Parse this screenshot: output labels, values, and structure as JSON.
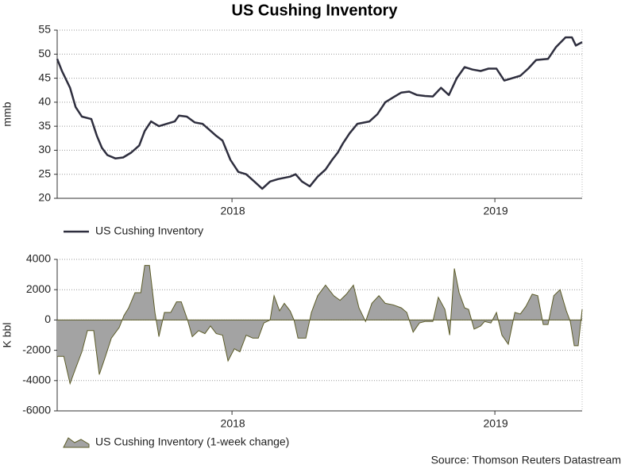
{
  "title": "US Cushing Inventory",
  "source": "Source: Thomson Reuters Datastream",
  "chart_data": [
    {
      "type": "line",
      "ylabel": "mmb",
      "x": [
        2017.335,
        2017.353,
        2017.384,
        2017.405,
        2017.429,
        2017.465,
        2017.486,
        2017.505,
        2017.526,
        2017.556,
        2017.586,
        2017.616,
        2017.647,
        2017.668,
        2017.692,
        2017.722,
        2017.752,
        2017.782,
        2017.798,
        2017.828,
        2017.858,
        2017.888,
        2017.909,
        2017.94,
        2017.964,
        2017.994,
        2018.024,
        2018.054,
        2018.085,
        2018.115,
        2018.145,
        2018.175,
        2018.221,
        2018.242,
        2018.266,
        2018.296,
        2018.326,
        2018.356,
        2018.381,
        2018.402,
        2018.423,
        2018.447,
        2018.477,
        2018.523,
        2018.553,
        2018.583,
        2018.613,
        2018.644,
        2018.674,
        2018.704,
        2018.734,
        2018.764,
        2018.795,
        2018.825,
        2018.855,
        2018.885,
        2018.915,
        2018.946,
        2018.976,
        2019.006,
        2019.036,
        2019.066,
        2019.097,
        2019.127,
        2019.157,
        2019.202,
        2019.233,
        2019.269,
        2019.293,
        2019.308,
        2019.332
      ],
      "series": [
        {
          "name": "US Cushing Inventory",
          "color": "#2e2e3e",
          "values": [
            49,
            46.5,
            43,
            39,
            37,
            36.5,
            33,
            30.5,
            29,
            28.3,
            28.5,
            29.5,
            31,
            34,
            36,
            35,
            35.5,
            36,
            37.2,
            37,
            35.8,
            35.5,
            34.5,
            33,
            32,
            28,
            25.5,
            25,
            23.5,
            22,
            23.5,
            24,
            24.5,
            25,
            23.5,
            22.5,
            24.5,
            26,
            28,
            29.5,
            31.5,
            33.5,
            35.5,
            36,
            37.5,
            40,
            41,
            42,
            42.2,
            41.5,
            41.3,
            41.2,
            43,
            41.5,
            45,
            47.3,
            46.8,
            46.5,
            47,
            47,
            44.5,
            45,
            45.5,
            47,
            48.8,
            49,
            51.5,
            53.5,
            53.5,
            51.8,
            52.5
          ]
        }
      ],
      "xlim": [
        2017.335,
        2019.332
      ],
      "xticks": [
        2018,
        2019
      ],
      "ylim": [
        20,
        55
      ],
      "yticks": [
        20,
        25,
        30,
        35,
        40,
        45,
        50,
        55
      ],
      "grid": true
    },
    {
      "type": "area",
      "ylabel": "K bbl",
      "x": [
        2017.335,
        2017.36,
        2017.384,
        2017.405,
        2017.429,
        2017.45,
        2017.474,
        2017.495,
        2017.517,
        2017.541,
        2017.571,
        2017.589,
        2017.607,
        2017.631,
        2017.653,
        2017.668,
        2017.686,
        2017.707,
        2017.722,
        2017.743,
        2017.767,
        2017.789,
        2017.807,
        2017.831,
        2017.849,
        2017.873,
        2017.897,
        2017.918,
        2017.94,
        2017.964,
        2017.985,
        2018.009,
        2018.03,
        2018.054,
        2018.079,
        2018.1,
        2018.121,
        2018.145,
        2018.16,
        2018.181,
        2018.199,
        2018.221,
        2018.236,
        2018.251,
        2018.281,
        2018.302,
        2018.326,
        2018.356,
        2018.387,
        2018.411,
        2018.435,
        2018.462,
        2018.483,
        2018.508,
        2018.532,
        2018.559,
        2018.583,
        2018.613,
        2018.644,
        2018.665,
        2018.689,
        2018.713,
        2018.734,
        2018.764,
        2018.785,
        2018.81,
        2018.828,
        2018.846,
        2018.864,
        2018.885,
        2018.9,
        2018.921,
        2018.946,
        2018.961,
        2018.985,
        2019.006,
        2019.027,
        2019.051,
        2019.076,
        2019.097,
        2019.118,
        2019.142,
        2019.163,
        2019.184,
        2019.202,
        2019.224,
        2019.248,
        2019.272,
        2019.287,
        2019.302,
        2019.317,
        2019.332
      ],
      "series": [
        {
          "name": "US Cushing Inventory (1-week change)",
          "color": "#a3a3a3",
          "edge": "#5c5c28",
          "values": [
            -2400,
            -2400,
            -4200,
            -3200,
            -2100,
            -700,
            -700,
            -3600,
            -2500,
            -1200,
            -500,
            300,
            800,
            1800,
            1800,
            3600,
            3600,
            500,
            -1100,
            500,
            500,
            1200,
            1200,
            0,
            -1100,
            -700,
            -900,
            -400,
            -900,
            -1000,
            -2700,
            -1900,
            -2100,
            -1000,
            -1200,
            -1200,
            -200,
            0,
            1600,
            600,
            1100,
            600,
            0,
            -1200,
            -1200,
            500,
            1600,
            2300,
            1600,
            1300,
            1700,
            2300,
            800,
            -100,
            1100,
            1600,
            1100,
            1000,
            800,
            500,
            -800,
            -200,
            -100,
            -100,
            1500,
            700,
            -1000,
            3400,
            1800,
            800,
            700,
            -600,
            -400,
            -100,
            -200,
            500,
            -1000,
            -1600,
            500,
            400,
            900,
            1700,
            1600,
            -300,
            -300,
            1600,
            2000,
            600,
            -100,
            -1700,
            -1700,
            700
          ]
        }
      ],
      "xlim": [
        2017.335,
        2019.332
      ],
      "xticks": [
        2018,
        2019
      ],
      "ylim": [
        -6000,
        4000
      ],
      "yticks": [
        -6000,
        -4000,
        -2000,
        0,
        2000,
        4000
      ],
      "grid": true
    }
  ]
}
